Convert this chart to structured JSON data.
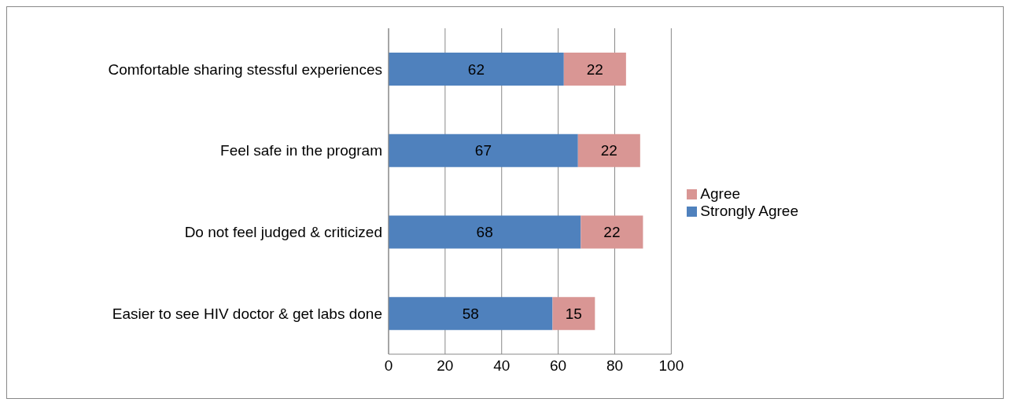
{
  "chart_data": {
    "type": "bar",
    "orientation": "horizontal",
    "stacked": true,
    "categories": [
      "Comfortable sharing stessful experiences",
      "Feel safe in the program",
      "Do not feel judged & criticized",
      "Easier to see HIV doctor & get labs done"
    ],
    "series": [
      {
        "name": "Strongly Agree",
        "color": "#4f81bd",
        "values": [
          62,
          67,
          68,
          58
        ]
      },
      {
        "name": "Agree",
        "color": "#d99694",
        "values": [
          22,
          22,
          22,
          15
        ]
      }
    ],
    "xlim": [
      0,
      100
    ],
    "xticks": [
      0,
      20,
      40,
      60,
      80,
      100
    ],
    "grid": "x",
    "legend": "right",
    "data_labels": true
  }
}
